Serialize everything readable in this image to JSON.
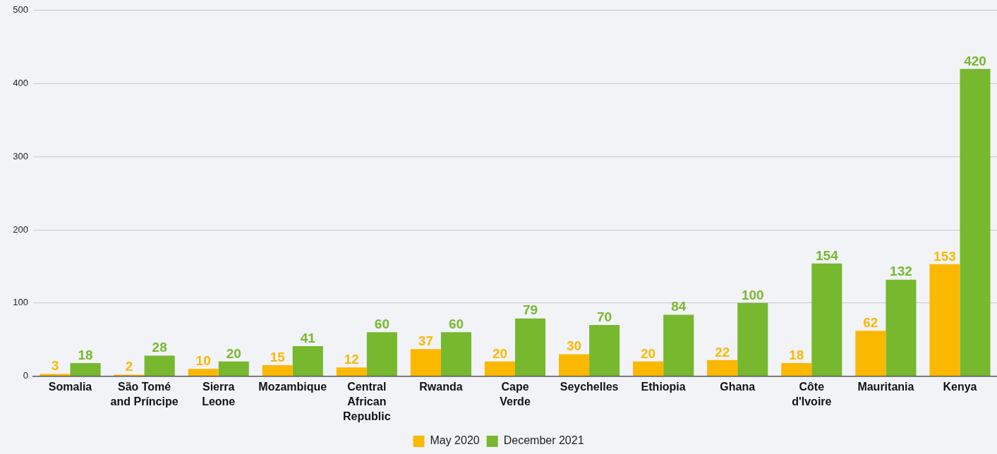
{
  "chart_data": {
    "type": "bar",
    "categories": [
      "Somalia",
      "São Tomé and Príncipe",
      "Sierra Leone",
      "Mozambique",
      "Central African Republic",
      "Rwanda",
      "Cape Verde",
      "Seychelles",
      "Ethiopia",
      "Ghana",
      "Côte d'Ivoire",
      "Mauritania",
      "Kenya"
    ],
    "series": [
      {
        "name": "May 2020",
        "color": "#fbb800",
        "values": [
          3,
          2,
          10,
          15,
          12,
          37,
          20,
          30,
          20,
          22,
          18,
          62,
          153
        ]
      },
      {
        "name": "December 2021",
        "color": "#77b82f",
        "values": [
          18,
          28,
          20,
          41,
          60,
          60,
          79,
          70,
          84,
          100,
          154,
          132,
          420
        ]
      }
    ],
    "ylim": [
      0,
      500
    ],
    "yticks": [
      0,
      100,
      200,
      300,
      400,
      500
    ],
    "grid": "y",
    "legend": "bottom",
    "data_labels": true
  }
}
